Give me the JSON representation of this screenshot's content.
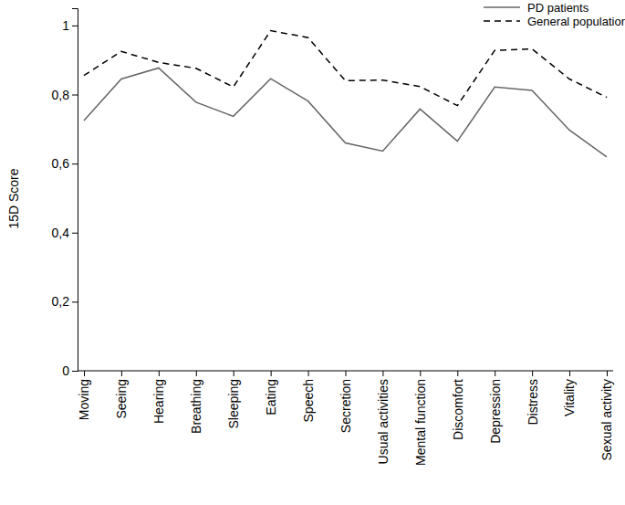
{
  "chart_data": {
    "type": "line",
    "categories": [
      "Moving",
      "Seeing",
      "Hearing",
      "Breathing",
      "Sleeping",
      "Eating",
      "Speech",
      "Secretion",
      "Usual activities",
      "Mental function",
      "Discomfort",
      "Depression",
      "Distress",
      "Vitality",
      "Sexual activity"
    ],
    "series": [
      {
        "name": "PD patients",
        "color": "#666666",
        "line_style": "solid",
        "values": [
          0.725,
          0.845,
          0.877,
          0.778,
          0.737,
          0.846,
          0.781,
          0.66,
          0.636,
          0.758,
          0.665,
          0.822,
          0.812,
          0.697,
          0.619
        ]
      },
      {
        "name": "General population",
        "color": "#000000",
        "line_style": "dashed",
        "values": [
          0.855,
          0.925,
          0.893,
          0.876,
          0.822,
          0.985,
          0.965,
          0.84,
          0.842,
          0.823,
          0.768,
          0.928,
          0.932,
          0.845,
          0.792
        ]
      }
    ],
    "y_label": "15D Score",
    "ylim": [
      0,
      1.05
    ],
    "yticks": [
      0,
      {
        "value": 0.2,
        "label": "0,2"
      },
      {
        "value": 0.4,
        "label": "0,4"
      },
      {
        "value": 0.6,
        "label": "0,6"
      },
      {
        "value": 0.8,
        "label": "0,8"
      },
      1
    ],
    "legend": "upper right",
    "grid": false
  }
}
